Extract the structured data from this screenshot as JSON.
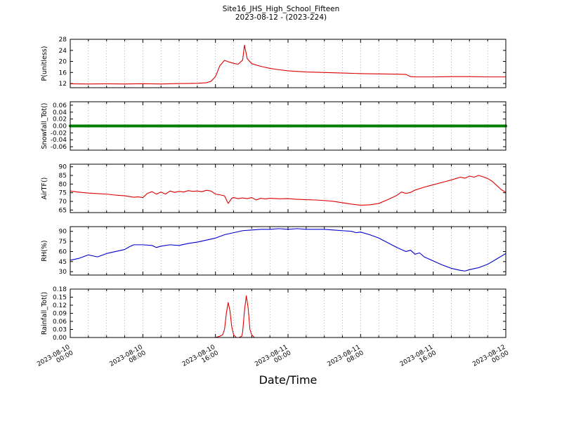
{
  "chart_data": {
    "type": "line",
    "title": "Site16_JHS_High_School_Fifteen",
    "subtitle": "2023-08-12 - (2023-224)",
    "xlabel": "Date/Time",
    "x_range_hours": [
      0,
      48
    ],
    "x_grid_step_hours": 2,
    "x_major_tick_hours": [
      0,
      8,
      16,
      24,
      32,
      40,
      48
    ],
    "x_tick_labels": [
      {
        "date": "2023-08-10",
        "time": "00:00"
      },
      {
        "date": "2023-08-10",
        "time": "08:00"
      },
      {
        "date": "2023-08-10",
        "time": "16:00"
      },
      {
        "date": "2023-08-11",
        "time": "00:00"
      },
      {
        "date": "2023-08-11",
        "time": "08:00"
      },
      {
        "date": "2023-08-11",
        "time": "16:00"
      },
      {
        "date": "2023-08-12",
        "time": "00:00"
      }
    ],
    "panels": [
      {
        "id": "pressure",
        "ylabel": "P(unitless)",
        "ylim": [
          10.5,
          28
        ],
        "yticks": [
          12,
          16,
          20,
          24,
          28
        ],
        "ytick_labels": [
          "12",
          "16",
          "20",
          "24",
          "28"
        ],
        "series": [
          {
            "name": "P",
            "color": "#dd0000",
            "line_width": 1.1,
            "x": [
              0,
              2,
              4,
              6,
              8,
              10,
              12,
              13,
              14,
              15,
              15.5,
              16,
              16.5,
              17,
              17.5,
              18,
              18.5,
              19,
              19.2,
              19.5,
              20,
              21,
              22,
              23,
              24,
              26,
              28,
              30,
              32,
              34,
              36,
              37,
              37.5,
              38,
              40,
              42,
              44,
              46,
              48
            ],
            "values": [
              11.9,
              11.85,
              11.9,
              11.85,
              11.95,
              11.85,
              12.0,
              12.05,
              12.1,
              12.3,
              12.8,
              14.5,
              18.5,
              20.4,
              19.8,
              19.3,
              19.0,
              20.5,
              25.9,
              21.0,
              19.2,
              18.2,
              17.5,
              17.0,
              16.6,
              16.2,
              16.0,
              15.8,
              15.6,
              15.5,
              15.4,
              15.3,
              14.5,
              14.4,
              14.4,
              14.5,
              14.5,
              14.4,
              14.4
            ]
          }
        ]
      },
      {
        "id": "snowfall",
        "ylabel": "Snowfall_Tot()",
        "ylim": [
          -0.07,
          0.07
        ],
        "yticks": [
          0.06,
          0.04,
          0.02,
          0,
          -0.02,
          -0.04,
          -0.06
        ],
        "ytick_labels": [
          "0.06",
          "0.04",
          "0.02",
          "0.00",
          "-0.02",
          "-0.04",
          "-0.06"
        ],
        "series": [
          {
            "name": "Snowfall_Tot",
            "color": "#008000",
            "line_width": 4,
            "x": [
              0,
              48
            ],
            "values": [
              0,
              0
            ]
          }
        ]
      },
      {
        "id": "airtf",
        "ylabel": "AirTF()",
        "ylim": [
          63.5,
          91.5
        ],
        "yticks": [
          65,
          70,
          75,
          80,
          85,
          90
        ],
        "ytick_labels": [
          "65",
          "70",
          "75",
          "80",
          "85",
          "90"
        ],
        "series": [
          {
            "name": "AirTF",
            "color": "#dd0000",
            "line_width": 1.1,
            "x": [
              0,
              1,
              2,
              3,
              4,
              5,
              6,
              7,
              7.5,
              8,
              8.5,
              9,
              9.5,
              10,
              10.5,
              11,
              11.5,
              12,
              12.5,
              13,
              13.5,
              14,
              14.5,
              15,
              15.5,
              16,
              16.5,
              17,
              17.4,
              17.8,
              18,
              18.5,
              19,
              19.5,
              20,
              20.5,
              21,
              21.5,
              22,
              23,
              24,
              25,
              26,
              27,
              28,
              29,
              30,
              31,
              32,
              33,
              34,
              35,
              36,
              36.5,
              37,
              37.5,
              38,
              39,
              40,
              41,
              42,
              42.5,
              43,
              43.5,
              44,
              44.5,
              45,
              45.5,
              46,
              46.5,
              47,
              47.5,
              48
            ],
            "values": [
              76.0,
              75.3,
              74.8,
              74.5,
              74.2,
              73.6,
              73.2,
              72.4,
              72.6,
              72.2,
              74.6,
              75.6,
              74.2,
              75.4,
              74.2,
              76.0,
              75.2,
              75.8,
              75.4,
              76.2,
              75.8,
              76.0,
              75.6,
              76.4,
              76.0,
              74.2,
              73.8,
              73.2,
              68.8,
              71.8,
              72.2,
              71.6,
              72.0,
              71.6,
              72.2,
              70.8,
              71.8,
              71.4,
              71.8,
              71.5,
              71.6,
              71.2,
              71.0,
              70.8,
              70.5,
              70.0,
              69.2,
              68.4,
              67.8,
              68.0,
              68.8,
              71.0,
              73.5,
              75.4,
              74.6,
              75.2,
              76.5,
              78.2,
              79.6,
              81.0,
              82.4,
              83.2,
              84.0,
              83.4,
              84.6,
              84.0,
              85.0,
              84.2,
              83.2,
              81.6,
              79.2,
              76.8,
              75.2
            ]
          }
        ]
      },
      {
        "id": "rh",
        "ylabel": "RH(%)",
        "ylim": [
          25,
          97
        ],
        "yticks": [
          30,
          45,
          60,
          75,
          90
        ],
        "ytick_labels": [
          "30",
          "45",
          "60",
          "75",
          "90"
        ],
        "series": [
          {
            "name": "RH",
            "color": "#0000cc",
            "line_width": 1.1,
            "x": [
              0,
              1,
              2,
              3,
              4,
              5,
              6,
              6.5,
              7,
              8,
              9,
              9.5,
              10,
              11,
              12,
              13,
              14,
              15,
              16,
              17,
              18,
              19,
              20,
              21,
              22,
              23,
              24,
              25,
              26,
              27,
              28,
              29,
              30,
              31,
              31.5,
              32,
              33,
              34,
              35,
              36,
              37,
              37.5,
              38,
              38.5,
              39,
              40,
              41,
              42,
              43,
              43.5,
              44,
              45,
              46,
              47,
              48
            ],
            "values": [
              47,
              50,
              55,
              52,
              57,
              60,
              63,
              67,
              70,
              70,
              69,
              66,
              68,
              70,
              69,
              72,
              74,
              77,
              80,
              85,
              88,
              91,
              92,
              93,
              93,
              94,
              93,
              94,
              93,
              93,
              93,
              92,
              91,
              90,
              88,
              89,
              85,
              80,
              73,
              66,
              60,
              62,
              56,
              58,
              52,
              46,
              40,
              35,
              32,
              31,
              33,
              36,
              41,
              49,
              57
            ]
          }
        ]
      },
      {
        "id": "rainfall",
        "ylabel": "Rainfall_Tot()",
        "ylim": [
          0,
          0.18
        ],
        "yticks": [
          0.18,
          0.15,
          0.12,
          0.09,
          0.06,
          0.03,
          0
        ],
        "ytick_labels": [
          "0.18",
          "0.15",
          "0.12",
          "0.09",
          "0.06",
          "0.03",
          "0.00"
        ],
        "series": [
          {
            "name": "Rainfall_Tot",
            "color": "#dd0000",
            "line_width": 1.1,
            "x": [
              0,
              14,
              16,
              16.5,
              16.8,
              17,
              17.2,
              17.4,
              17.6,
              17.8,
              18,
              18.3,
              18.6,
              18.9,
              19,
              19.2,
              19.4,
              19.6,
              19.8,
              20,
              20.3,
              21,
              48
            ],
            "values": [
              0,
              0,
              0,
              0.005,
              0.01,
              0.03,
              0.09,
              0.13,
              0.1,
              0.04,
              0.01,
              0.0,
              0.0,
              0.005,
              0.02,
              0.1,
              0.155,
              0.11,
              0.03,
              0.01,
              0.0,
              0,
              0
            ]
          }
        ]
      }
    ]
  }
}
